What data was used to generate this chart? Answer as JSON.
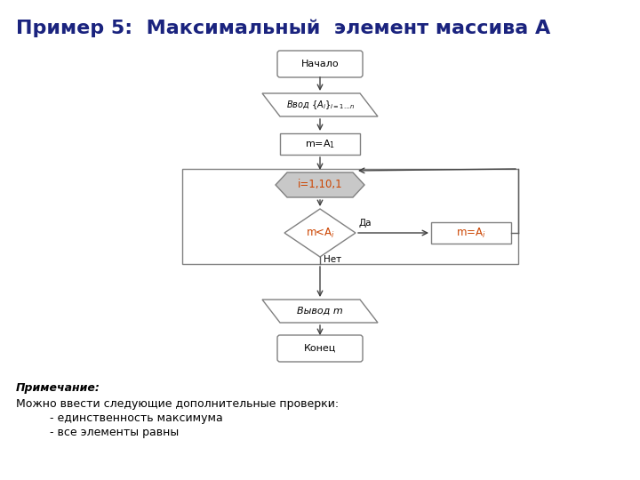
{
  "title": "Пример 5:  Максимальный  элемент массива А",
  "title_color": "#1a237e",
  "title_fontsize": 16,
  "bg_color": "#ffffff",
  "shape_edge_color": "#808080",
  "shape_fill_color": "#ffffff",
  "loop_fill_color": "#c8c8c8",
  "loop_edge_color": "#808080",
  "orange_text_color": "#cc4400",
  "arrow_color": "#404040",
  "note_bold_text": "Примечание:",
  "note_line1": "Можно ввести следующие дополнительные проверки:",
  "note_line2": "     - единственность максимума",
  "note_line3": "     - все элементы равны"
}
